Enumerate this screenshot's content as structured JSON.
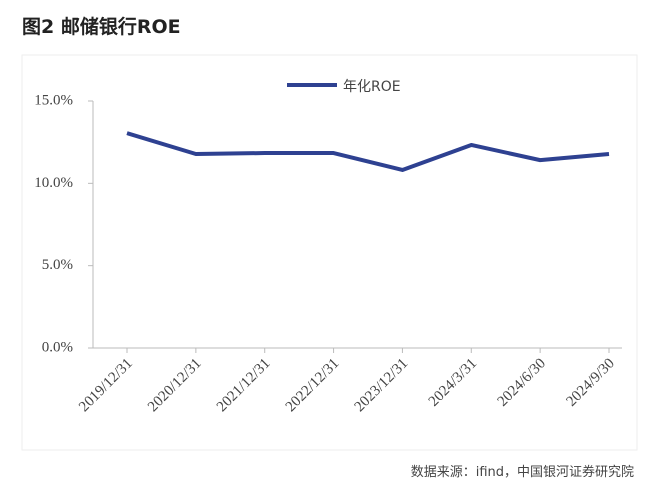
{
  "chart_data": {
    "type": "line",
    "title": "图2  邮储银行ROE",
    "categories": [
      "2019/12/31",
      "2020/12/31",
      "2021/12/31",
      "2022/12/31",
      "2023/12/31",
      "2024/3/31",
      "2024/6/30",
      "2024/9/30"
    ],
    "series": [
      {
        "name": "年化ROE",
        "color": "#2e4191",
        "values": [
          13.05,
          11.78,
          11.84,
          11.84,
          10.81,
          12.33,
          11.41,
          11.78
        ]
      }
    ],
    "ylim": [
      0,
      15
    ],
    "yticks": [
      {
        "value": 0,
        "label": "0.0%"
      },
      {
        "value": 5,
        "label": "5.0%"
      },
      {
        "value": 10,
        "label": "10.0%"
      },
      {
        "value": 15,
        "label": "15.0%"
      }
    ],
    "legend": "top",
    "source": "数据来源：ifind，中国银河证券研究院"
  }
}
